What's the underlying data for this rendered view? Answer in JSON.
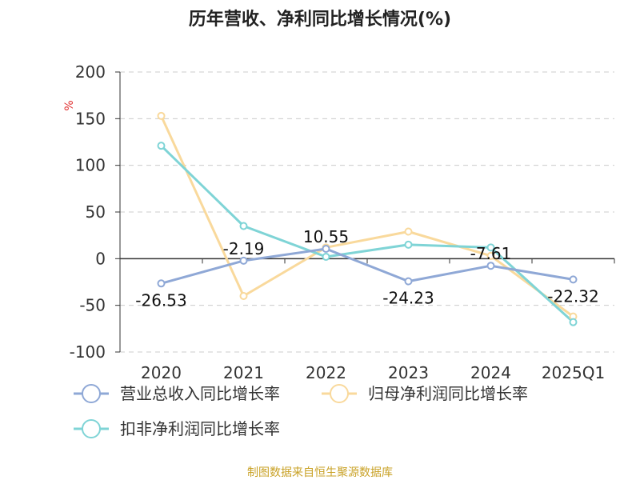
{
  "title": "历年营收、净利同比增长情况(%)",
  "source": "制图数据来自恒生聚源数据库",
  "chart_data": {
    "type": "line",
    "title": "历年营收、净利同比增长情况(%)",
    "ylabel": "%",
    "categories": [
      "2020",
      "2021",
      "2022",
      "2023",
      "2024",
      "2025Q1"
    ],
    "ylim": [
      -100,
      200
    ],
    "yticks": [
      -100,
      -50,
      0,
      50,
      100,
      150,
      200
    ],
    "grid": true,
    "legend_position": "bottom-left",
    "series": [
      {
        "name": "营业总收入同比增长率",
        "color": "#8fa8d6",
        "values": [
          -26.53,
          -2.19,
          10.55,
          -24.23,
          -7.61,
          -22.32
        ],
        "labels": [
          "-26.53",
          "-2.19",
          "10.55",
          "-24.23",
          "-7.61",
          "-22.32"
        ]
      },
      {
        "name": "归母净利润同比增长率",
        "color": "#f9d99c",
        "values": [
          153,
          -40,
          12,
          29,
          3,
          -62
        ]
      },
      {
        "name": "扣非净利润同比增长率",
        "color": "#7fd4d6",
        "values": [
          121,
          35,
          2,
          15,
          12,
          -68
        ]
      }
    ]
  }
}
